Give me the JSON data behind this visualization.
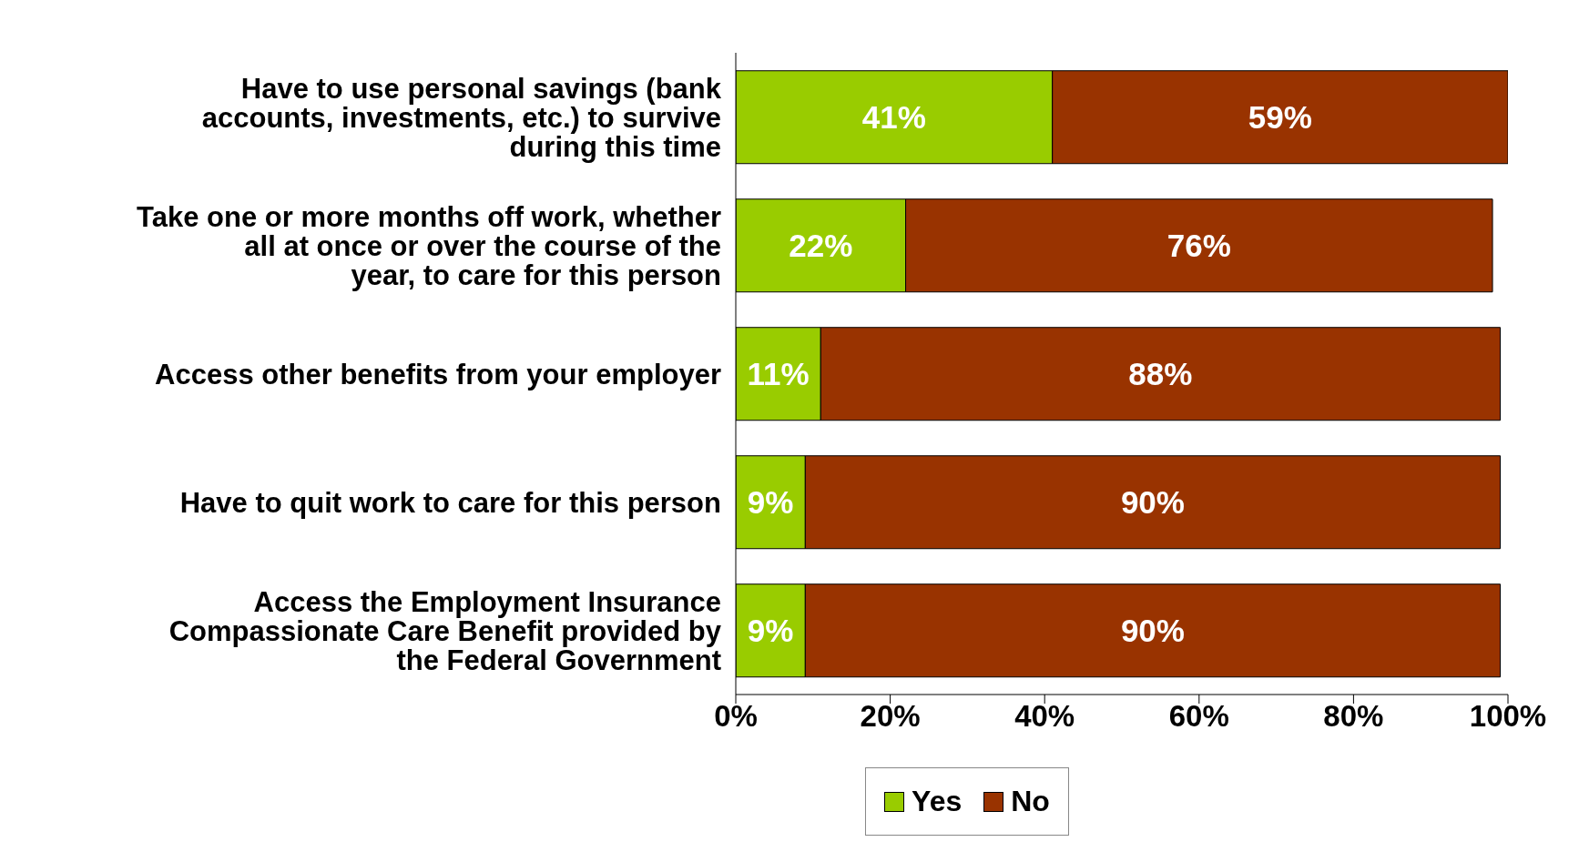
{
  "chart_data": {
    "type": "bar",
    "orientation": "horizontal",
    "stacked": true,
    "categories": [
      "Have to use personal savings (bank accounts, investments, etc.) to survive during this time",
      "Take one or more months off work, whether all at once or over the course of the year, to care for this person",
      "Access other benefits from your employer",
      "Have to quit work to care for this person",
      "Access the Employment Insurance Compassionate Care Benefit provided by the Federal Government"
    ],
    "series": [
      {
        "name": "Yes",
        "color": "#99cc00",
        "values": [
          41,
          22,
          11,
          9,
          9
        ],
        "value_labels": [
          "41%",
          "22%",
          "11%",
          "9%",
          "9%"
        ]
      },
      {
        "name": "No",
        "color": "#993300",
        "values": [
          59,
          76,
          88,
          90,
          90
        ],
        "value_labels": [
          "59%",
          "76%",
          "88%",
          "90%",
          "90%"
        ]
      }
    ],
    "xlim": [
      0,
      100
    ],
    "xticks": [
      {
        "value": 0,
        "label": "0%"
      },
      {
        "value": 20,
        "label": "20%"
      },
      {
        "value": 40,
        "label": "40%"
      },
      {
        "value": 60,
        "label": "60%"
      },
      {
        "value": 80,
        "label": "80%"
      },
      {
        "value": 100,
        "label": "100%"
      }
    ],
    "grid": false,
    "legend": "bottom"
  }
}
